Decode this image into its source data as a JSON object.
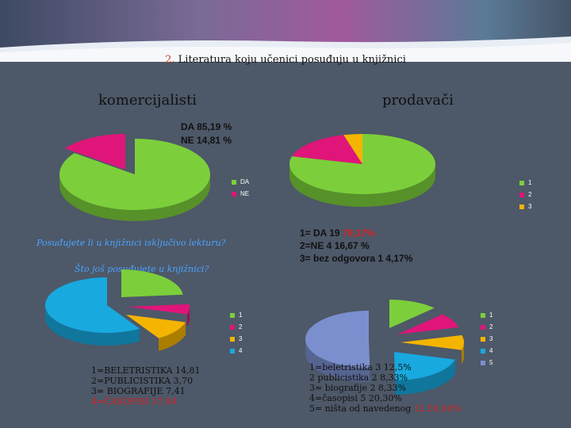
{
  "slide": {
    "title_num": "2.",
    "title_text": " Literatura koju  učenici posuđuju u knjižnici",
    "left_heading": "komercijalisti",
    "right_heading": "prodavači"
  },
  "colors": {
    "green": "#7ccf3a",
    "magenta": "#e0157a",
    "orange": "#f4b400",
    "cyan": "#18a9df",
    "blue_gray": "#7b8fce"
  },
  "chart_data": [
    {
      "type": "pie",
      "id": "kom-da-ne",
      "annotation_lines": [
        "DA  85,19 %",
        "NE  14,81 %"
      ],
      "categories": [
        "DA",
        "NE"
      ],
      "values": [
        85.19,
        14.81
      ],
      "legend": [
        "DA",
        "NE"
      ],
      "legend_position": "right",
      "colors": [
        "#7ccf3a",
        "#e0157a"
      ]
    },
    {
      "type": "pie",
      "id": "prod-da-ne",
      "categories": [
        "1",
        "2",
        "3"
      ],
      "values": [
        79.17,
        16.67,
        4.17
      ],
      "legend": [
        "1",
        "2",
        "3"
      ],
      "legend_position": "right",
      "colors": [
        "#7ccf3a",
        "#e0157a",
        "#f4b400"
      ],
      "annotation_lines": [
        {
          "text": "1= DA   19  ",
          "red": "79,17%"
        },
        {
          "text": "2=NE  4  16,67 %",
          "red": ""
        },
        {
          "text": "3= bez odgovora   1 4,17%",
          "red": ""
        }
      ]
    },
    {
      "type": "pie",
      "id": "kom-sto-jos",
      "categories": [
        "1",
        "2",
        "3",
        "4"
      ],
      "values": [
        14.81,
        3.7,
        7.41,
        37.04
      ],
      "legend": [
        "1",
        "2",
        "3",
        "4"
      ],
      "legend_position": "right",
      "colors": [
        "#7ccf3a",
        "#e0157a",
        "#f4b400",
        "#18a9df"
      ],
      "annotation_lines": [
        {
          "text": "1=BELETRISTIKA 14,81",
          "red": false
        },
        {
          "text": "2=PUBLICISTIKA  3,70",
          "red": false
        },
        {
          "text": "3= BIOGRAFIJE      7,41",
          "red": false
        },
        {
          "text": "4=ČASOPISI        37,04",
          "red": true
        }
      ]
    },
    {
      "type": "pie",
      "id": "prod-sto-jos",
      "categories": [
        "1",
        "2",
        "3",
        "4",
        "5"
      ],
      "values": [
        12.5,
        8.33,
        8.33,
        20.3,
        50.0
      ],
      "legend": [
        "1",
        "2",
        "3",
        "4",
        "5"
      ],
      "legend_position": "right",
      "colors": [
        "#7ccf3a",
        "#e0157a",
        "#f4b400",
        "#18a9df",
        "#7b8fce"
      ],
      "annotation_lines": [
        {
          "text": "1=beletristika     3    12,5%",
          "red": false
        },
        {
          "text": "2  publicistika    2      8,33%",
          "red": false
        },
        {
          "text": "3= biografije      2      8,33%",
          "red": false
        },
        {
          "text": "4=časopisi         5    20,30%",
          "red": false
        },
        {
          "text": "5= ništa od navedenog    ",
          "red_tail": "12   50,00%"
        }
      ]
    }
  ],
  "questions": {
    "q1": "Posuđujete li u knjižnici isključivo lekturu?",
    "q2": "Što još posuđujete u knjižnici?"
  }
}
